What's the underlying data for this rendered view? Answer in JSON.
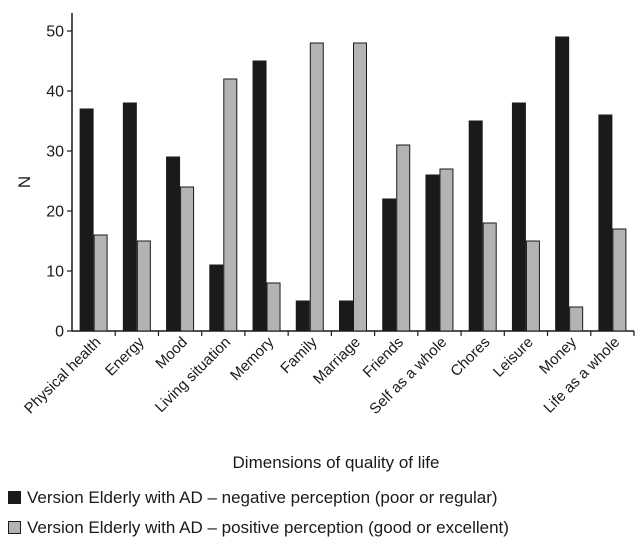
{
  "chart_data": {
    "type": "bar",
    "xlabel": "Dimensions of quality of life",
    "ylabel": "N",
    "ylim": [
      0,
      50
    ],
    "yticks": [
      0,
      10,
      20,
      30,
      40,
      50
    ],
    "categories": [
      "Physical health",
      "Energy",
      "Mood",
      "Living situation",
      "Memory",
      "Family",
      "Marriage",
      "Friends",
      "Self as a whole",
      "Chores",
      "Leisure",
      "Money",
      "Life as a whole"
    ],
    "series": [
      {
        "name": "Version Elderly with AD – negative perception (poor or regular)",
        "color": "#1a1a1a",
        "values": [
          37,
          38,
          29,
          11,
          45,
          5,
          5,
          22,
          26,
          35,
          38,
          49,
          36
        ]
      },
      {
        "name": "Version Elderly with AD – positive perception (good or excellent)",
        "color": "#b3b3b3",
        "values": [
          16,
          15,
          24,
          42,
          8,
          48,
          48,
          31,
          27,
          18,
          15,
          4,
          17
        ]
      }
    ],
    "grid": false,
    "legend_position": "bottom"
  }
}
